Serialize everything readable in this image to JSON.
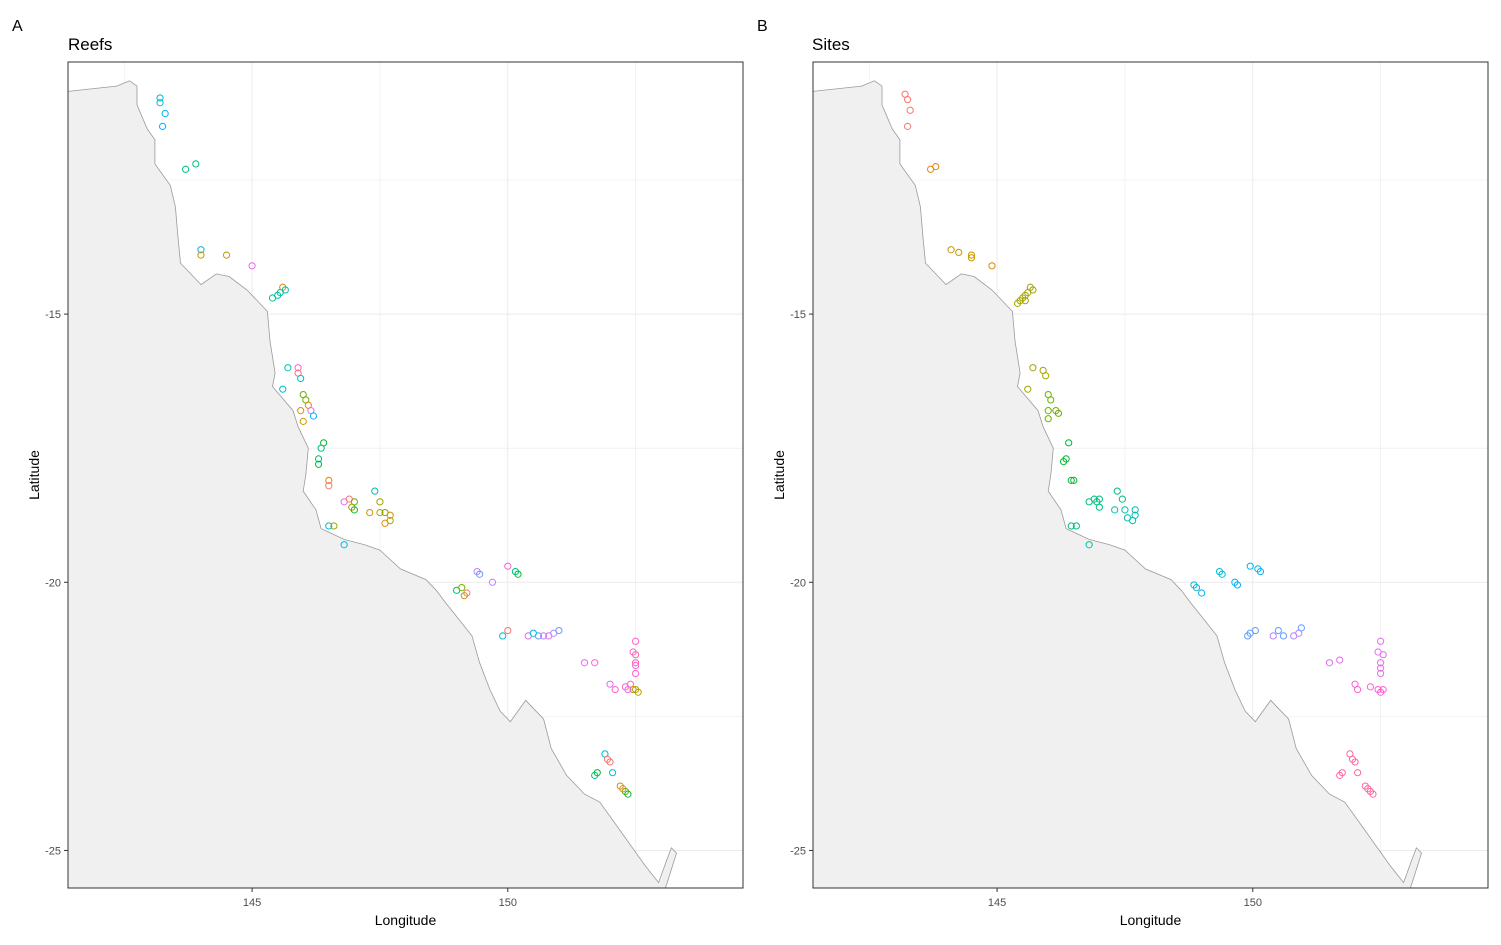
{
  "colors": {
    "land_fill": "#f0f0f0",
    "coast_stroke": "#9a9a9a",
    "grid": "#ebebeb",
    "border": "#333333",
    "palette": [
      "#F8766D",
      "#E58700",
      "#C99800",
      "#A3A500",
      "#6BB100",
      "#00BA38",
      "#00BF7D",
      "#00C0AF",
      "#00BCD8",
      "#00B0F6",
      "#619CFF",
      "#B983FF",
      "#E76BF3",
      "#FD61D1",
      "#FF67A4"
    ]
  },
  "chart_data": [
    {
      "type": "scatter",
      "panel_label": "A",
      "title": "Reefs",
      "xlabel": "Longitude",
      "ylabel": "Latitude",
      "xlim": [
        141.4,
        154.6
      ],
      "ylim": [
        -25.7,
        -10.3
      ],
      "x_ticks": [
        145,
        150
      ],
      "x_tick_labels": [
        "145",
        "150"
      ],
      "y_ticks": [
        -15,
        -20,
        -25
      ],
      "y_tick_labels": [
        "-15",
        "-20",
        "-25"
      ],
      "grid": true,
      "legend": "none",
      "points": [
        {
          "x": 143.2,
          "y": -10.97,
          "c": 8
        },
        {
          "x": 143.2,
          "y": -11.06,
          "c": 8
        },
        {
          "x": 143.3,
          "y": -11.26,
          "c": 9
        },
        {
          "x": 143.25,
          "y": -11.5,
          "c": 9
        },
        {
          "x": 143.7,
          "y": -12.3,
          "c": 6
        },
        {
          "x": 143.9,
          "y": -12.2,
          "c": 6
        },
        {
          "x": 144.0,
          "y": -13.8,
          "c": 8
        },
        {
          "x": 144.0,
          "y": -13.9,
          "c": 2
        },
        {
          "x": 144.5,
          "y": -13.9,
          "c": 2
        },
        {
          "x": 145.0,
          "y": -14.1,
          "c": 12
        },
        {
          "x": 145.4,
          "y": -14.7,
          "c": 6
        },
        {
          "x": 145.5,
          "y": -14.65,
          "c": 7
        },
        {
          "x": 145.55,
          "y": -14.6,
          "c": 6
        },
        {
          "x": 145.6,
          "y": -14.5,
          "c": 1
        },
        {
          "x": 145.65,
          "y": -14.55,
          "c": 7
        },
        {
          "x": 145.7,
          "y": -16.0,
          "c": 7
        },
        {
          "x": 145.9,
          "y": -16.0,
          "c": 13
        },
        {
          "x": 145.9,
          "y": -16.1,
          "c": 0
        },
        {
          "x": 145.95,
          "y": -16.2,
          "c": 8
        },
        {
          "x": 145.6,
          "y": -16.4,
          "c": 8
        },
        {
          "x": 146.0,
          "y": -16.5,
          "c": 4
        },
        {
          "x": 146.05,
          "y": -16.6,
          "c": 4
        },
        {
          "x": 146.1,
          "y": -16.7,
          "c": 1
        },
        {
          "x": 145.95,
          "y": -16.8,
          "c": 2
        },
        {
          "x": 146.15,
          "y": -16.8,
          "c": 12
        },
        {
          "x": 146.2,
          "y": -16.9,
          "c": 9
        },
        {
          "x": 146.0,
          "y": -17.0,
          "c": 2
        },
        {
          "x": 146.4,
          "y": -17.4,
          "c": 5
        },
        {
          "x": 146.35,
          "y": -17.5,
          "c": 6
        },
        {
          "x": 146.3,
          "y": -17.7,
          "c": 6
        },
        {
          "x": 146.3,
          "y": -17.8,
          "c": 5
        },
        {
          "x": 146.5,
          "y": -18.1,
          "c": 1
        },
        {
          "x": 146.5,
          "y": -18.2,
          "c": 0
        },
        {
          "x": 146.8,
          "y": -18.5,
          "c": 12
        },
        {
          "x": 146.9,
          "y": -18.45,
          "c": 0
        },
        {
          "x": 147.0,
          "y": -18.5,
          "c": 4
        },
        {
          "x": 146.95,
          "y": -18.6,
          "c": 3
        },
        {
          "x": 147.0,
          "y": -18.65,
          "c": 5
        },
        {
          "x": 147.4,
          "y": -18.3,
          "c": 7
        },
        {
          "x": 147.5,
          "y": -18.5,
          "c": 3
        },
        {
          "x": 147.3,
          "y": -18.7,
          "c": 2
        },
        {
          "x": 147.5,
          "y": -18.7,
          "c": 2
        },
        {
          "x": 147.6,
          "y": -18.7,
          "c": 4
        },
        {
          "x": 147.7,
          "y": -18.75,
          "c": 2
        },
        {
          "x": 147.6,
          "y": -18.9,
          "c": 1
        },
        {
          "x": 147.7,
          "y": -18.85,
          "c": 3
        },
        {
          "x": 146.5,
          "y": -18.95,
          "c": 8
        },
        {
          "x": 146.6,
          "y": -18.95,
          "c": 3
        },
        {
          "x": 146.8,
          "y": -19.3,
          "c": 8
        },
        {
          "x": 149.0,
          "y": -20.15,
          "c": 6
        },
        {
          "x": 149.1,
          "y": -20.1,
          "c": 4
        },
        {
          "x": 149.2,
          "y": -20.2,
          "c": 0
        },
        {
          "x": 149.15,
          "y": -20.25,
          "c": 2
        },
        {
          "x": 149.4,
          "y": -19.8,
          "c": 11
        },
        {
          "x": 149.45,
          "y": -19.85,
          "c": 10
        },
        {
          "x": 149.7,
          "y": -20.0,
          "c": 11
        },
        {
          "x": 150.0,
          "y": -19.7,
          "c": 13
        },
        {
          "x": 150.15,
          "y": -19.8,
          "c": 6
        },
        {
          "x": 150.2,
          "y": -19.85,
          "c": 5
        },
        {
          "x": 149.9,
          "y": -21.0,
          "c": 8
        },
        {
          "x": 150.0,
          "y": -20.9,
          "c": 0
        },
        {
          "x": 150.4,
          "y": -21.0,
          "c": 12
        },
        {
          "x": 150.5,
          "y": -20.95,
          "c": 8
        },
        {
          "x": 150.6,
          "y": -21.0,
          "c": 10
        },
        {
          "x": 150.7,
          "y": -21.0,
          "c": 11
        },
        {
          "x": 150.8,
          "y": -21.0,
          "c": 12
        },
        {
          "x": 150.9,
          "y": -20.95,
          "c": 11
        },
        {
          "x": 151.0,
          "y": -20.9,
          "c": 10
        },
        {
          "x": 151.5,
          "y": -21.5,
          "c": 12
        },
        {
          "x": 151.7,
          "y": -21.5,
          "c": 13
        },
        {
          "x": 152.5,
          "y": -21.1,
          "c": 13
        },
        {
          "x": 152.45,
          "y": -21.3,
          "c": 13
        },
        {
          "x": 152.5,
          "y": -21.35,
          "c": 14
        },
        {
          "x": 152.5,
          "y": -21.5,
          "c": 14
        },
        {
          "x": 152.5,
          "y": -21.55,
          "c": 13
        },
        {
          "x": 152.5,
          "y": -21.7,
          "c": 13
        },
        {
          "x": 152.0,
          "y": -21.9,
          "c": 12
        },
        {
          "x": 152.1,
          "y": -22.0,
          "c": 13
        },
        {
          "x": 152.3,
          "y": -21.95,
          "c": 14
        },
        {
          "x": 152.4,
          "y": -21.9,
          "c": 13
        },
        {
          "x": 152.45,
          "y": -22.0,
          "c": 1
        },
        {
          "x": 152.5,
          "y": -22.0,
          "c": 3
        },
        {
          "x": 152.55,
          "y": -22.05,
          "c": 2
        },
        {
          "x": 152.35,
          "y": -22.0,
          "c": 12
        },
        {
          "x": 151.7,
          "y": -23.6,
          "c": 6
        },
        {
          "x": 151.75,
          "y": -23.55,
          "c": 5
        },
        {
          "x": 151.9,
          "y": -23.2,
          "c": 8
        },
        {
          "x": 151.95,
          "y": -23.3,
          "c": 0
        },
        {
          "x": 152.0,
          "y": -23.35,
          "c": 0
        },
        {
          "x": 152.05,
          "y": -23.55,
          "c": 8
        },
        {
          "x": 152.2,
          "y": -23.8,
          "c": 2
        },
        {
          "x": 152.25,
          "y": -23.85,
          "c": 0
        },
        {
          "x": 152.3,
          "y": -23.9,
          "c": 4
        },
        {
          "x": 152.35,
          "y": -23.95,
          "c": 5
        }
      ]
    },
    {
      "type": "scatter",
      "panel_label": "B",
      "title": "Sites",
      "xlabel": "Longitude",
      "ylabel": "Latitude",
      "xlim": [
        141.4,
        154.6
      ],
      "ylim": [
        -25.7,
        -10.3
      ],
      "x_ticks": [
        145,
        150
      ],
      "x_tick_labels": [
        "145",
        "150"
      ],
      "y_ticks": [
        -15,
        -20,
        -25
      ],
      "y_tick_labels": [
        "-15",
        "-20",
        "-25"
      ],
      "grid": true,
      "legend": "none",
      "points": [
        {
          "x": 143.2,
          "y": -10.9,
          "c": 0
        },
        {
          "x": 143.25,
          "y": -11.0,
          "c": 0
        },
        {
          "x": 143.3,
          "y": -11.2,
          "c": 0
        },
        {
          "x": 143.25,
          "y": -11.5,
          "c": 0
        },
        {
          "x": 143.7,
          "y": -12.3,
          "c": 1
        },
        {
          "x": 143.8,
          "y": -12.25,
          "c": 1
        },
        {
          "x": 144.1,
          "y": -13.8,
          "c": 2
        },
        {
          "x": 144.25,
          "y": -13.85,
          "c": 2
        },
        {
          "x": 144.5,
          "y": -13.9,
          "c": 2
        },
        {
          "x": 144.5,
          "y": -13.95,
          "c": 2
        },
        {
          "x": 144.9,
          "y": -14.1,
          "c": 1
        },
        {
          "x": 145.4,
          "y": -14.8,
          "c": 3
        },
        {
          "x": 145.45,
          "y": -14.75,
          "c": 3
        },
        {
          "x": 145.5,
          "y": -14.7,
          "c": 3
        },
        {
          "x": 145.55,
          "y": -14.75,
          "c": 3
        },
        {
          "x": 145.55,
          "y": -14.65,
          "c": 3
        },
        {
          "x": 145.6,
          "y": -14.6,
          "c": 3
        },
        {
          "x": 145.65,
          "y": -14.5,
          "c": 3
        },
        {
          "x": 145.7,
          "y": -14.55,
          "c": 3
        },
        {
          "x": 145.7,
          "y": -16.0,
          "c": 3
        },
        {
          "x": 145.6,
          "y": -16.4,
          "c": 3
        },
        {
          "x": 145.9,
          "y": -16.05,
          "c": 3
        },
        {
          "x": 145.95,
          "y": -16.15,
          "c": 3
        },
        {
          "x": 146.0,
          "y": -16.5,
          "c": 4
        },
        {
          "x": 146.05,
          "y": -16.6,
          "c": 4
        },
        {
          "x": 146.15,
          "y": -16.8,
          "c": 4
        },
        {
          "x": 146.2,
          "y": -16.85,
          "c": 4
        },
        {
          "x": 146.0,
          "y": -16.8,
          "c": 4
        },
        {
          "x": 146.0,
          "y": -16.95,
          "c": 4
        },
        {
          "x": 146.4,
          "y": -17.4,
          "c": 5
        },
        {
          "x": 146.35,
          "y": -17.7,
          "c": 5
        },
        {
          "x": 146.3,
          "y": -17.75,
          "c": 5
        },
        {
          "x": 146.45,
          "y": -18.1,
          "c": 5
        },
        {
          "x": 146.5,
          "y": -18.1,
          "c": 5
        },
        {
          "x": 146.8,
          "y": -18.5,
          "c": 6
        },
        {
          "x": 146.9,
          "y": -18.45,
          "c": 6
        },
        {
          "x": 146.95,
          "y": -18.5,
          "c": 6
        },
        {
          "x": 147.0,
          "y": -18.45,
          "c": 6
        },
        {
          "x": 147.0,
          "y": -18.6,
          "c": 6
        },
        {
          "x": 147.35,
          "y": -18.3,
          "c": 6
        },
        {
          "x": 147.45,
          "y": -18.45,
          "c": 6
        },
        {
          "x": 147.3,
          "y": -18.65,
          "c": 7
        },
        {
          "x": 147.5,
          "y": -18.65,
          "c": 7
        },
        {
          "x": 147.55,
          "y": -18.8,
          "c": 7
        },
        {
          "x": 147.7,
          "y": -18.75,
          "c": 7
        },
        {
          "x": 147.65,
          "y": -18.85,
          "c": 7
        },
        {
          "x": 147.7,
          "y": -18.65,
          "c": 7
        },
        {
          "x": 146.45,
          "y": -18.95,
          "c": 6
        },
        {
          "x": 146.55,
          "y": -18.95,
          "c": 6
        },
        {
          "x": 146.8,
          "y": -19.3,
          "c": 7
        },
        {
          "x": 148.85,
          "y": -20.05,
          "c": 8
        },
        {
          "x": 148.9,
          "y": -20.1,
          "c": 8
        },
        {
          "x": 149.0,
          "y": -20.2,
          "c": 9
        },
        {
          "x": 149.35,
          "y": -19.8,
          "c": 8
        },
        {
          "x": 149.4,
          "y": -19.85,
          "c": 8
        },
        {
          "x": 149.65,
          "y": -20.0,
          "c": 9
        },
        {
          "x": 149.7,
          "y": -20.05,
          "c": 9
        },
        {
          "x": 149.95,
          "y": -19.7,
          "c": 9
        },
        {
          "x": 150.1,
          "y": -19.75,
          "c": 9
        },
        {
          "x": 150.15,
          "y": -19.8,
          "c": 9
        },
        {
          "x": 149.9,
          "y": -21.0,
          "c": 10
        },
        {
          "x": 149.95,
          "y": -20.95,
          "c": 10
        },
        {
          "x": 150.05,
          "y": -20.9,
          "c": 10
        },
        {
          "x": 150.4,
          "y": -21.0,
          "c": 11
        },
        {
          "x": 150.5,
          "y": -20.9,
          "c": 10
        },
        {
          "x": 150.6,
          "y": -21.0,
          "c": 10
        },
        {
          "x": 150.8,
          "y": -21.0,
          "c": 11
        },
        {
          "x": 150.9,
          "y": -20.95,
          "c": 11
        },
        {
          "x": 150.95,
          "y": -20.85,
          "c": 10
        },
        {
          "x": 151.5,
          "y": -21.5,
          "c": 12
        },
        {
          "x": 151.7,
          "y": -21.45,
          "c": 12
        },
        {
          "x": 152.5,
          "y": -21.1,
          "c": 12
        },
        {
          "x": 152.45,
          "y": -21.3,
          "c": 12
        },
        {
          "x": 152.55,
          "y": -21.35,
          "c": 12
        },
        {
          "x": 152.5,
          "y": -21.5,
          "c": 12
        },
        {
          "x": 152.5,
          "y": -21.6,
          "c": 12
        },
        {
          "x": 152.5,
          "y": -21.7,
          "c": 12
        },
        {
          "x": 152.0,
          "y": -21.9,
          "c": 13
        },
        {
          "x": 152.05,
          "y": -22.0,
          "c": 13
        },
        {
          "x": 152.3,
          "y": -21.95,
          "c": 13
        },
        {
          "x": 152.45,
          "y": -22.0,
          "c": 13
        },
        {
          "x": 152.5,
          "y": -22.05,
          "c": 13
        },
        {
          "x": 152.55,
          "y": -22.0,
          "c": 13
        },
        {
          "x": 151.7,
          "y": -23.6,
          "c": 14
        },
        {
          "x": 151.75,
          "y": -23.55,
          "c": 14
        },
        {
          "x": 151.9,
          "y": -23.2,
          "c": 14
        },
        {
          "x": 151.95,
          "y": -23.3,
          "c": 14
        },
        {
          "x": 152.0,
          "y": -23.35,
          "c": 14
        },
        {
          "x": 152.05,
          "y": -23.55,
          "c": 14
        },
        {
          "x": 152.2,
          "y": -23.8,
          "c": 14
        },
        {
          "x": 152.25,
          "y": -23.85,
          "c": 14
        },
        {
          "x": 152.3,
          "y": -23.9,
          "c": 14
        },
        {
          "x": 152.35,
          "y": -23.95,
          "c": 14
        }
      ]
    }
  ]
}
